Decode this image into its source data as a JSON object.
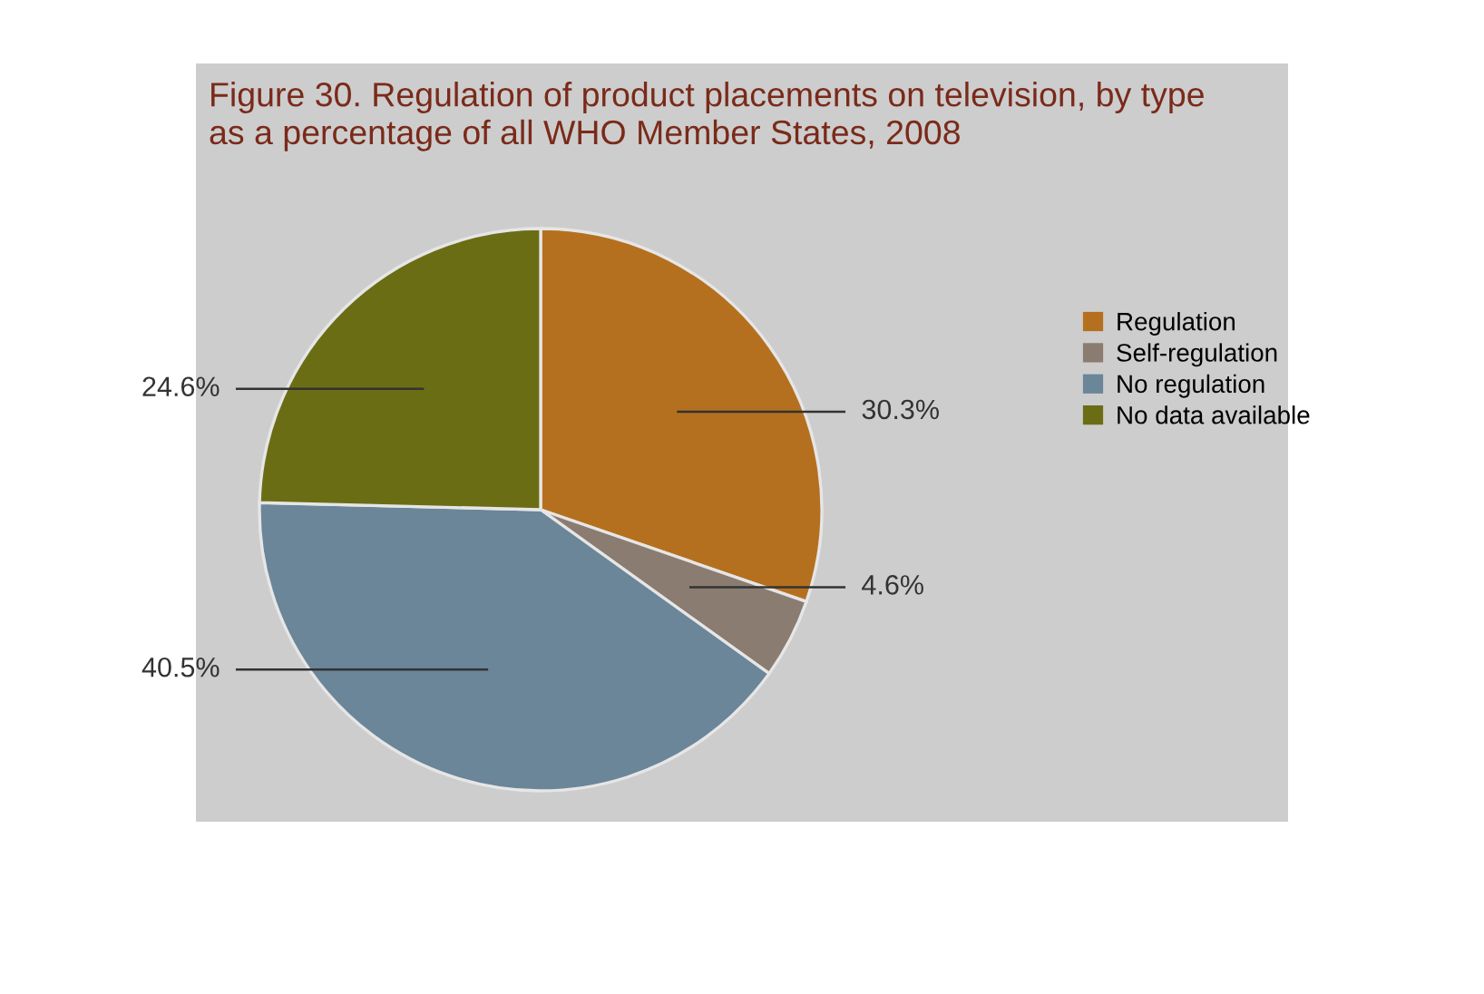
{
  "chart_data": {
    "type": "pie",
    "title": "Figure 30. Regulation of product placements on television, by type\nas a percentage of all WHO Member States, 2008",
    "categories": [
      "Regulation",
      "Self-regulation",
      "No regulation",
      "No data available"
    ],
    "values": [
      30.3,
      4.6,
      40.5,
      24.6
    ],
    "colors": [
      "#b5701f",
      "#8a7c70",
      "#6b8599",
      "#6a6d14"
    ],
    "value_labels": [
      "30.3%",
      "4.6%",
      "40.5%",
      "24.6%"
    ],
    "legend": "right"
  }
}
